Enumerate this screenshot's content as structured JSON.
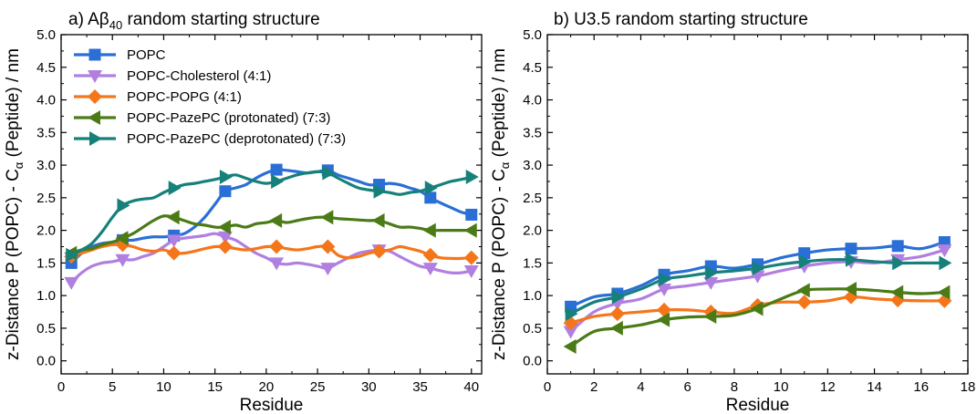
{
  "chart_data": [
    {
      "type": "line",
      "title_prefix": "a) Aβ",
      "title_sub": "40",
      "title_suffix": " random starting structure",
      "xlabel": "Residue",
      "ylabel_main": "z-Distance P (POPC) - C",
      "ylabel_sub": "α",
      "ylabel_end": " (Peptide) / nm",
      "xlim": [
        0,
        41
      ],
      "ylim": [
        -0.2,
        5.0
      ],
      "xticks": [
        0,
        5,
        10,
        15,
        20,
        25,
        30,
        35,
        40
      ],
      "yticks": [
        0.0,
        0.5,
        1.0,
        1.5,
        2.0,
        2.5,
        3.0,
        3.5,
        4.0,
        4.5,
        5.0
      ],
      "ytick_labels": [
        "0.0",
        "0.5",
        "1.0",
        "1.5",
        "2.0",
        "2.5",
        "3.0",
        "3.5",
        "4.0",
        "4.5",
        "5.0"
      ],
      "legend": "top-left",
      "series": [
        {
          "name": "POPC",
          "color": "#2a6fd6",
          "marker": "square",
          "x": [
            1,
            2,
            3,
            4,
            5,
            6,
            7,
            8,
            9,
            10,
            11,
            12,
            13,
            14,
            15,
            16,
            17,
            18,
            19,
            20,
            21,
            22,
            23,
            24,
            25,
            26,
            27,
            28,
            29,
            30,
            31,
            32,
            33,
            34,
            35,
            36,
            37,
            38,
            39,
            40
          ],
          "y": [
            1.5,
            1.65,
            1.75,
            1.8,
            1.82,
            1.85,
            1.85,
            1.88,
            1.9,
            1.9,
            1.92,
            1.95,
            2.05,
            2.2,
            2.4,
            2.6,
            2.65,
            2.7,
            2.8,
            2.88,
            2.93,
            2.92,
            2.9,
            2.88,
            2.9,
            2.92,
            2.85,
            2.8,
            2.75,
            2.7,
            2.7,
            2.72,
            2.7,
            2.65,
            2.6,
            2.5,
            2.42,
            2.35,
            2.28,
            2.24
          ]
        },
        {
          "name": "POPC-Cholesterol (4:1)",
          "color": "#b07fe0",
          "marker": "triangle-down",
          "x": [
            1,
            2,
            3,
            4,
            5,
            6,
            7,
            8,
            9,
            10,
            11,
            12,
            13,
            14,
            15,
            16,
            17,
            18,
            19,
            20,
            21,
            22,
            23,
            24,
            25,
            26,
            27,
            28,
            29,
            30,
            31,
            32,
            33,
            34,
            35,
            36,
            37,
            38,
            39,
            40
          ],
          "y": [
            1.2,
            1.35,
            1.45,
            1.5,
            1.52,
            1.55,
            1.55,
            1.6,
            1.65,
            1.75,
            1.85,
            1.88,
            1.9,
            1.92,
            1.95,
            1.9,
            1.85,
            1.75,
            1.65,
            1.58,
            1.5,
            1.48,
            1.5,
            1.48,
            1.45,
            1.42,
            1.5,
            1.58,
            1.65,
            1.68,
            1.7,
            1.68,
            1.6,
            1.52,
            1.45,
            1.42,
            1.38,
            1.35,
            1.35,
            1.38
          ]
        },
        {
          "name": "POPC-POPG (4:1)",
          "color": "#f5761a",
          "marker": "diamond",
          "x": [
            1,
            2,
            3,
            4,
            5,
            6,
            7,
            8,
            9,
            10,
            11,
            12,
            13,
            14,
            15,
            16,
            17,
            18,
            19,
            20,
            21,
            22,
            23,
            24,
            25,
            26,
            27,
            28,
            29,
            30,
            31,
            32,
            33,
            34,
            35,
            36,
            37,
            38,
            39,
            40
          ],
          "y": [
            1.6,
            1.65,
            1.7,
            1.75,
            1.78,
            1.78,
            1.75,
            1.7,
            1.68,
            1.7,
            1.65,
            1.65,
            1.68,
            1.72,
            1.75,
            1.75,
            1.72,
            1.7,
            1.72,
            1.75,
            1.75,
            1.72,
            1.7,
            1.72,
            1.75,
            1.75,
            1.62,
            1.58,
            1.6,
            1.65,
            1.68,
            1.7,
            1.75,
            1.72,
            1.68,
            1.62,
            1.58,
            1.57,
            1.57,
            1.58
          ]
        },
        {
          "name": "POPC-PazePC (protonated) (7:3)",
          "color": "#4a7b16",
          "marker": "triangle-left",
          "x": [
            1,
            2,
            3,
            4,
            5,
            6,
            7,
            8,
            9,
            10,
            11,
            12,
            13,
            14,
            15,
            16,
            17,
            18,
            19,
            20,
            21,
            22,
            23,
            24,
            25,
            26,
            27,
            28,
            29,
            30,
            31,
            32,
            33,
            34,
            35,
            36,
            37,
            38,
            39,
            40
          ],
          "y": [
            1.65,
            1.7,
            1.72,
            1.78,
            1.82,
            1.88,
            1.95,
            2.05,
            2.15,
            2.22,
            2.2,
            2.15,
            2.1,
            2.08,
            2.05,
            2.05,
            2.08,
            2.05,
            2.1,
            2.12,
            2.15,
            2.12,
            2.15,
            2.18,
            2.2,
            2.2,
            2.18,
            2.17,
            2.16,
            2.15,
            2.15,
            2.1,
            2.05,
            2.05,
            2.03,
            2.0,
            2.0,
            2.0,
            2.0,
            2.0
          ]
        },
        {
          "name": "POPC-PazePC (deprotonated) (7:3)",
          "color": "#16807a",
          "marker": "triangle-right",
          "x": [
            1,
            2,
            3,
            4,
            5,
            6,
            7,
            8,
            9,
            10,
            11,
            12,
            13,
            14,
            15,
            16,
            17,
            18,
            19,
            20,
            21,
            22,
            23,
            24,
            25,
            26,
            27,
            28,
            29,
            30,
            31,
            32,
            33,
            34,
            35,
            36,
            37,
            38,
            39,
            40
          ],
          "y": [
            1.62,
            1.7,
            1.8,
            1.98,
            2.2,
            2.38,
            2.45,
            2.48,
            2.5,
            2.58,
            2.65,
            2.7,
            2.72,
            2.75,
            2.78,
            2.82,
            2.85,
            2.8,
            2.75,
            2.72,
            2.75,
            2.8,
            2.85,
            2.88,
            2.9,
            2.88,
            2.8,
            2.72,
            2.65,
            2.62,
            2.6,
            2.58,
            2.55,
            2.58,
            2.6,
            2.65,
            2.7,
            2.75,
            2.78,
            2.82
          ]
        }
      ],
      "marker_every": [
        1,
        6,
        11,
        16,
        21,
        26,
        31,
        36,
        40
      ]
    },
    {
      "type": "line",
      "title": "b) U3.5 random starting structure",
      "xlabel": "Residue",
      "ylabel_main": "z-Distance P (POPC) - C",
      "ylabel_sub": "α",
      "ylabel_end": " (Peptide) / nm",
      "xlim": [
        0,
        18
      ],
      "ylim": [
        -0.2,
        5.0
      ],
      "xticks": [
        0,
        2,
        4,
        6,
        8,
        10,
        12,
        14,
        16,
        18
      ],
      "yticks": [
        0.0,
        0.5,
        1.0,
        1.5,
        2.0,
        2.5,
        3.0,
        3.5,
        4.0,
        4.5,
        5.0
      ],
      "ytick_labels": [
        "0.0",
        "0.5",
        "1.0",
        "1.5",
        "2.0",
        "2.5",
        "3.0",
        "3.5",
        "4.0",
        "4.5",
        "5.0"
      ],
      "series": [
        {
          "name": "POPC",
          "color": "#2a6fd6",
          "marker": "square",
          "x": [
            1,
            2,
            3,
            4,
            5,
            6,
            7,
            8,
            9,
            10,
            11,
            12,
            13,
            14,
            15,
            16,
            17
          ],
          "y": [
            0.83,
            0.98,
            1.03,
            1.15,
            1.32,
            1.38,
            1.45,
            1.42,
            1.48,
            1.58,
            1.65,
            1.7,
            1.72,
            1.73,
            1.76,
            1.72,
            1.82
          ]
        },
        {
          "name": "POPC-Cholesterol (4:1)",
          "color": "#b07fe0",
          "marker": "triangle-down",
          "x": [
            1,
            2,
            3,
            4,
            5,
            6,
            7,
            8,
            9,
            10,
            11,
            12,
            13,
            14,
            15,
            16,
            17
          ],
          "y": [
            0.45,
            0.75,
            0.88,
            0.95,
            1.1,
            1.15,
            1.2,
            1.25,
            1.3,
            1.38,
            1.45,
            1.5,
            1.52,
            1.5,
            1.55,
            1.6,
            1.7
          ]
        },
        {
          "name": "POPC-POPG (4:1)",
          "color": "#f5761a",
          "marker": "diamond",
          "x": [
            1,
            2,
            3,
            4,
            5,
            6,
            7,
            8,
            9,
            10,
            11,
            12,
            13,
            14,
            15,
            16,
            17
          ],
          "y": [
            0.58,
            0.68,
            0.72,
            0.75,
            0.78,
            0.78,
            0.75,
            0.73,
            0.85,
            0.9,
            0.9,
            0.92,
            0.98,
            0.95,
            0.93,
            0.92,
            0.92
          ]
        },
        {
          "name": "POPC-PazePC (protonated) (7:3)",
          "color": "#4a7b16",
          "marker": "triangle-left",
          "x": [
            1,
            2,
            3,
            4,
            5,
            6,
            7,
            8,
            9,
            10,
            11,
            12,
            13,
            14,
            15,
            16,
            17
          ],
          "y": [
            0.22,
            0.45,
            0.5,
            0.55,
            0.63,
            0.67,
            0.68,
            0.7,
            0.8,
            0.95,
            1.08,
            1.1,
            1.1,
            1.08,
            1.05,
            1.03,
            1.05
          ]
        },
        {
          "name": "POPC-PazePC (deprotonated) (7:3)",
          "color": "#16807a",
          "marker": "triangle-right",
          "x": [
            1,
            2,
            3,
            4,
            5,
            6,
            7,
            8,
            9,
            10,
            11,
            12,
            13,
            14,
            15,
            16,
            17
          ],
          "y": [
            0.72,
            0.9,
            0.98,
            1.1,
            1.25,
            1.3,
            1.35,
            1.38,
            1.42,
            1.48,
            1.52,
            1.55,
            1.55,
            1.52,
            1.5,
            1.5,
            1.5
          ]
        }
      ],
      "marker_every": [
        1,
        3,
        5,
        7,
        9,
        11,
        13,
        15,
        17
      ]
    }
  ]
}
